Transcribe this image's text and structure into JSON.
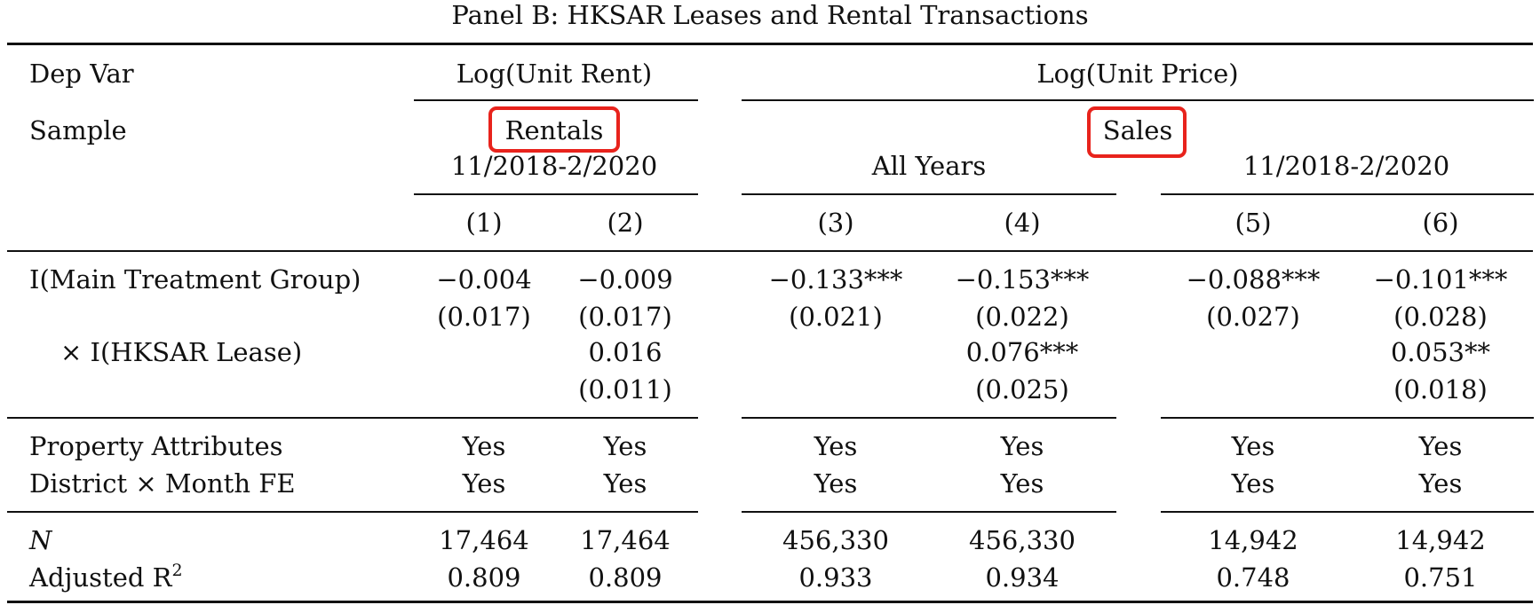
{
  "panel_title": "Panel B: HKSAR Leases and Rental Transactions",
  "header": {
    "depvar_label": "Dep Var",
    "depvar_rent": "Log(Unit Rent)",
    "depvar_price": "Log(Unit Price)",
    "sample_label": "Sample",
    "sample_rentals": "Rentals",
    "sample_rentals_period": "11/2018-2/2020",
    "sample_sales": "Sales",
    "sample_all_years": "All Years",
    "sample_sales_period": "11/2018-2/2020",
    "columns": [
      "(1)",
      "(2)",
      "(3)",
      "(4)",
      "(5)",
      "(6)"
    ]
  },
  "coefficients": {
    "row1_label": "I(Main Treatment Group)",
    "row1_est": [
      "−0.004",
      "−0.009",
      "−0.133***",
      "−0.153***",
      "−0.088***",
      "−0.101***"
    ],
    "row1_se": [
      "(0.017)",
      "(0.017)",
      "(0.021)",
      "(0.022)",
      "(0.027)",
      "(0.028)"
    ],
    "row2_label": "× I(HKSAR Lease)",
    "row2_est": [
      "",
      "0.016",
      "",
      "0.076***",
      "",
      "0.053**"
    ],
    "row2_se": [
      "",
      "(0.011)",
      "",
      "(0.025)",
      "",
      "(0.018)"
    ]
  },
  "controls": {
    "row1_label": "Property Attributes",
    "row1": [
      "Yes",
      "Yes",
      "Yes",
      "Yes",
      "Yes",
      "Yes"
    ],
    "row2_label": "District × Month FE",
    "row2": [
      "Yes",
      "Yes",
      "Yes",
      "Yes",
      "Yes",
      "Yes"
    ]
  },
  "stats": {
    "n_label": "N",
    "n": [
      "17,464",
      "17,464",
      "456,330",
      "456,330",
      "14,942",
      "14,942"
    ],
    "r2_label": "Adjusted R",
    "r2_sup": "2",
    "r2": [
      "0.809",
      "0.809",
      "0.933",
      "0.934",
      "0.748",
      "0.751"
    ]
  },
  "highlight_color": "#e8231c"
}
